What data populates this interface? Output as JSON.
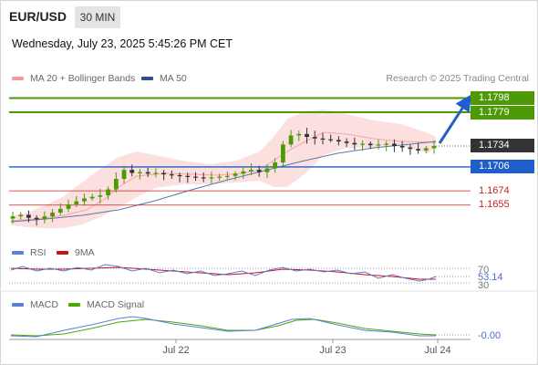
{
  "header": {
    "symbol": "EUR/USD",
    "timeframe": "30 MIN",
    "datetime": "Wednesday, July 23, 2025 5:45:26 PM CET"
  },
  "legend": {
    "bollinger": "MA 20 + Bollinger Bands",
    "ma50": "MA 50",
    "credit": "Research © 2025 Trading Central",
    "rsi": "RSI",
    "rsi_ma": "9MA",
    "macd": "MACD",
    "macd_signal": "MACD Signal"
  },
  "colors": {
    "green": "#4e9a06",
    "blue": "#1f5fcc",
    "red": "#cc2222",
    "dark": "#333333",
    "band_fill": "#fbe0df",
    "ma20": "#f4a6a6",
    "ma50": "#5a78a8",
    "candle_up": "#4e9a06",
    "candle_down": "#333333"
  },
  "chart_data": [
    {
      "type": "candlestick",
      "x_ticks": [
        "Jul 22",
        "Jul 23",
        "Jul 24"
      ],
      "y_range": [
        1.1612,
        1.1812
      ],
      "levels": [
        {
          "value": 1.1798,
          "label": "1.1798",
          "kind": "resistance-target",
          "color": "#4e9a06"
        },
        {
          "value": 1.1779,
          "label": "1.1779",
          "kind": "resistance-target",
          "color": "#4e9a06"
        },
        {
          "value": 1.1734,
          "label": "1.1734",
          "kind": "last-price",
          "color": "#333333"
        },
        {
          "value": 1.1706,
          "label": "1.1706",
          "kind": "pivot",
          "color": "#1f5fcc"
        },
        {
          "value": 1.1674,
          "label": "1.1674",
          "kind": "support",
          "color": "#cc2222"
        },
        {
          "value": 1.1655,
          "label": "1.1655",
          "kind": "support",
          "color": "#cc2222"
        }
      ],
      "close_path": [
        1.164,
        1.1642,
        1.1638,
        1.1636,
        1.164,
        1.1645,
        1.165,
        1.1656,
        1.166,
        1.1664,
        1.1666,
        1.1668,
        1.1676,
        1.169,
        1.1702,
        1.1698,
        1.1699,
        1.1697,
        1.1698,
        1.1696,
        1.1695,
        1.1694,
        1.1693,
        1.1692,
        1.1691,
        1.1692,
        1.1693,
        1.1694,
        1.1697,
        1.17,
        1.1702,
        1.1699,
        1.1704,
        1.1712,
        1.1736,
        1.1748,
        1.175,
        1.1746,
        1.1744,
        1.1743,
        1.1742,
        1.174,
        1.1738,
        1.1736,
        1.1737,
        1.1735,
        1.1736,
        1.1737,
        1.1734,
        1.1732,
        1.173,
        1.1728,
        1.1731,
        1.1734
      ],
      "forecast_target": 1.1798
    },
    {
      "type": "line",
      "name": "RSI",
      "series": [
        {
          "name": "RSI"
        },
        {
          "name": "9MA"
        }
      ],
      "y_ticks": [
        "70",
        "30"
      ],
      "last_value": "53.14"
    },
    {
      "type": "line",
      "name": "MACD",
      "series": [
        {
          "name": "MACD"
        },
        {
          "name": "MACD Signal"
        }
      ],
      "last_value": "-0.00"
    }
  ]
}
